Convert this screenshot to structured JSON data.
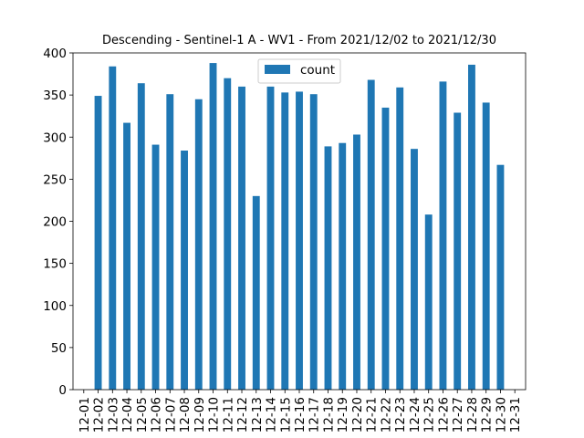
{
  "chart_data": {
    "type": "bar",
    "title": "Descending - Sentinel-1 A - WV1 - From 2021/12/02 to 2021/12/30",
    "xlabel": "",
    "ylabel": "",
    "categories": [
      "12-01",
      "12-02",
      "12-03",
      "12-04",
      "12-05",
      "12-06",
      "12-07",
      "12-08",
      "12-09",
      "12-10",
      "12-11",
      "12-12",
      "12-13",
      "12-14",
      "12-15",
      "12-16",
      "12-17",
      "12-18",
      "12-19",
      "12-20",
      "12-21",
      "12-22",
      "12-23",
      "12-24",
      "12-25",
      "12-26",
      "12-27",
      "12-28",
      "12-29",
      "12-30",
      "12-31"
    ],
    "series": [
      {
        "name": "count",
        "color": "#1f77b4",
        "values": [
          0,
          349,
          384,
          317,
          364,
          291,
          351,
          284,
          345,
          388,
          370,
          360,
          230,
          360,
          353,
          354,
          351,
          289,
          293,
          303,
          368,
          335,
          359,
          286,
          208,
          366,
          329,
          386,
          341,
          267,
          0
        ]
      }
    ],
    "ylim": [
      0,
      400
    ],
    "yticks": [
      0,
      50,
      100,
      150,
      200,
      250,
      300,
      350,
      400
    ],
    "legend": "top-center",
    "grid": false
  }
}
